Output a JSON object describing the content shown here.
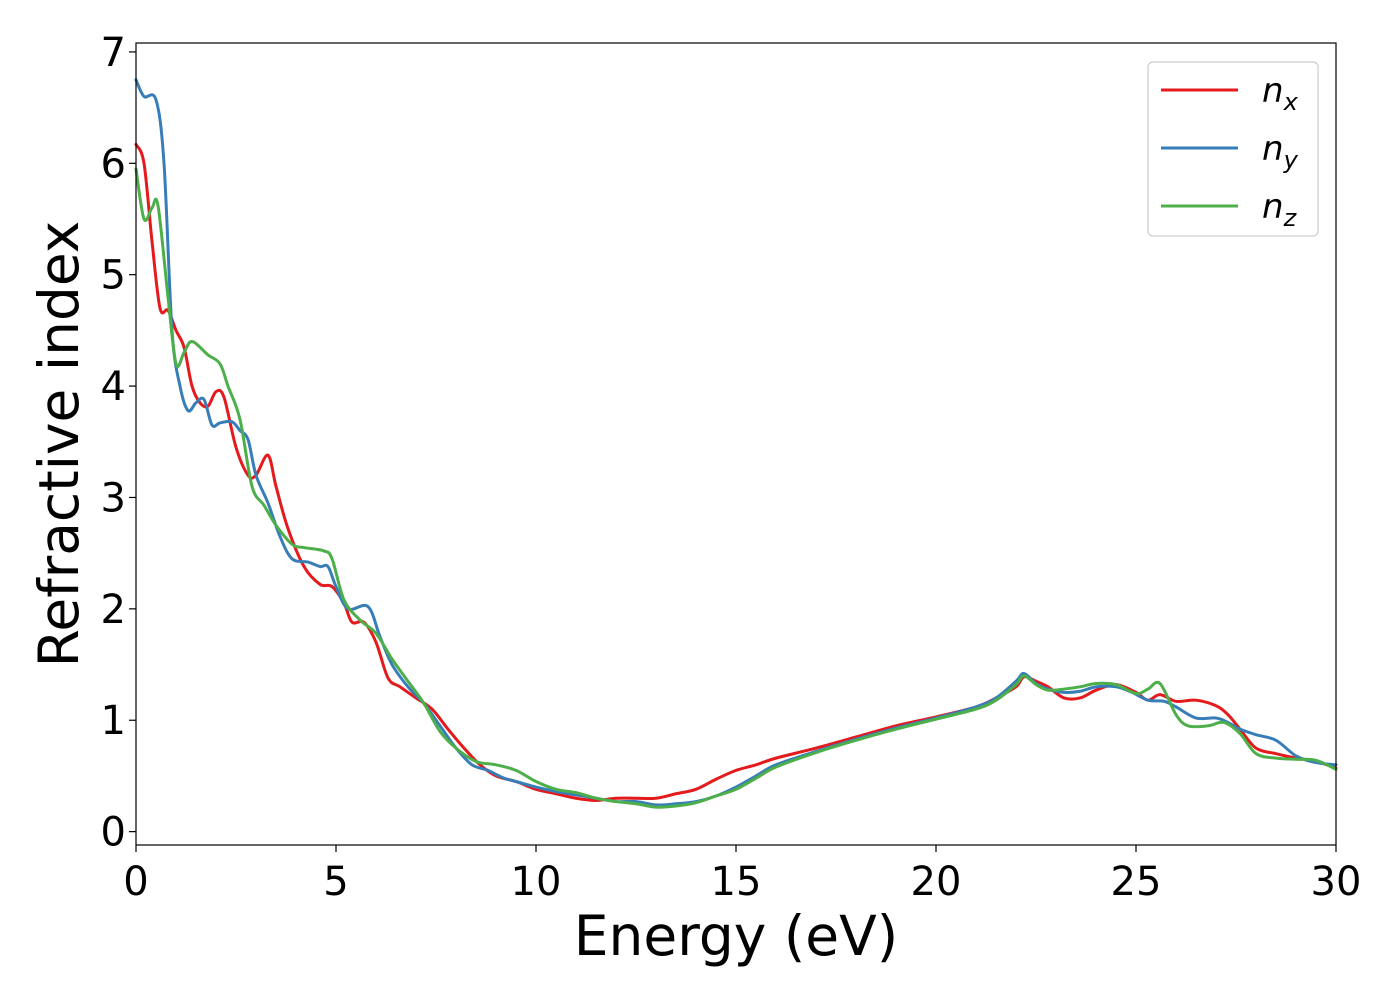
{
  "chart_data": {
    "type": "line",
    "title": "",
    "xlabel": "Energy (eV)",
    "ylabel": "Refractive index",
    "xlim": [
      0,
      30
    ],
    "ylim": [
      -0.12,
      7.08
    ],
    "xticks": [
      0,
      5,
      10,
      15,
      20,
      25,
      30
    ],
    "yticks": [
      0,
      1,
      2,
      3,
      4,
      5,
      6,
      7
    ],
    "legend_position": "top-right",
    "grid": false,
    "series": [
      {
        "name": "n_x",
        "label_main": "n",
        "label_sub": "x",
        "color": "#e41a1c",
        "points": [
          [
            0,
            6.17
          ],
          [
            0.2,
            6.0
          ],
          [
            0.4,
            5.3
          ],
          [
            0.6,
            4.7
          ],
          [
            0.8,
            4.68
          ],
          [
            1.0,
            4.5
          ],
          [
            1.2,
            4.35
          ],
          [
            1.4,
            4.0
          ],
          [
            1.6,
            3.85
          ],
          [
            1.8,
            3.82
          ],
          [
            2.0,
            3.95
          ],
          [
            2.2,
            3.9
          ],
          [
            2.5,
            3.45
          ],
          [
            2.8,
            3.2
          ],
          [
            3.0,
            3.2
          ],
          [
            3.3,
            3.38
          ],
          [
            3.5,
            3.1
          ],
          [
            3.8,
            2.72
          ],
          [
            4.2,
            2.38
          ],
          [
            4.6,
            2.22
          ],
          [
            4.9,
            2.2
          ],
          [
            5.2,
            2.05
          ],
          [
            5.4,
            1.88
          ],
          [
            5.7,
            1.88
          ],
          [
            6.0,
            1.7
          ],
          [
            6.3,
            1.38
          ],
          [
            6.6,
            1.3
          ],
          [
            7.0,
            1.2
          ],
          [
            7.4,
            1.1
          ],
          [
            7.8,
            0.92
          ],
          [
            8.2,
            0.75
          ],
          [
            8.6,
            0.6
          ],
          [
            9.0,
            0.5
          ],
          [
            9.5,
            0.45
          ],
          [
            10,
            0.38
          ],
          [
            10.5,
            0.34
          ],
          [
            11,
            0.3
          ],
          [
            11.5,
            0.28
          ],
          [
            12,
            0.3
          ],
          [
            12.5,
            0.3
          ],
          [
            13,
            0.3
          ],
          [
            13.5,
            0.34
          ],
          [
            14,
            0.38
          ],
          [
            14.5,
            0.47
          ],
          [
            15,
            0.55
          ],
          [
            15.5,
            0.6
          ],
          [
            16,
            0.66
          ],
          [
            17,
            0.75
          ],
          [
            18,
            0.85
          ],
          [
            19,
            0.95
          ],
          [
            20,
            1.03
          ],
          [
            21,
            1.12
          ],
          [
            21.5,
            1.2
          ],
          [
            22,
            1.3
          ],
          [
            22.2,
            1.39
          ],
          [
            22.5,
            1.35
          ],
          [
            22.8,
            1.3
          ],
          [
            23.2,
            1.2
          ],
          [
            23.6,
            1.2
          ],
          [
            24,
            1.27
          ],
          [
            24.5,
            1.32
          ],
          [
            25,
            1.25
          ],
          [
            25.3,
            1.18
          ],
          [
            25.6,
            1.23
          ],
          [
            26,
            1.17
          ],
          [
            26.5,
            1.18
          ],
          [
            27,
            1.13
          ],
          [
            27.3,
            1.05
          ],
          [
            27.6,
            0.92
          ],
          [
            28,
            0.75
          ],
          [
            28.5,
            0.7
          ],
          [
            29,
            0.66
          ],
          [
            29.5,
            0.63
          ],
          [
            30,
            0.57
          ]
        ]
      },
      {
        "name": "n_y",
        "label_main": "n",
        "label_sub": "y",
        "color": "#377eb8",
        "points": [
          [
            0,
            6.75
          ],
          [
            0.2,
            6.6
          ],
          [
            0.5,
            6.57
          ],
          [
            0.7,
            6.0
          ],
          [
            0.9,
            4.5
          ],
          [
            1.1,
            4.0
          ],
          [
            1.3,
            3.78
          ],
          [
            1.5,
            3.85
          ],
          [
            1.7,
            3.88
          ],
          [
            1.9,
            3.65
          ],
          [
            2.1,
            3.67
          ],
          [
            2.4,
            3.68
          ],
          [
            2.6,
            3.6
          ],
          [
            2.8,
            3.52
          ],
          [
            3.0,
            3.2
          ],
          [
            3.3,
            2.95
          ],
          [
            3.6,
            2.65
          ],
          [
            3.9,
            2.45
          ],
          [
            4.3,
            2.42
          ],
          [
            4.6,
            2.38
          ],
          [
            4.8,
            2.38
          ],
          [
            5.0,
            2.2
          ],
          [
            5.3,
            2.0
          ],
          [
            5.8,
            2.02
          ],
          [
            6.1,
            1.75
          ],
          [
            6.4,
            1.5
          ],
          [
            6.8,
            1.3
          ],
          [
            7.2,
            1.15
          ],
          [
            7.6,
            0.95
          ],
          [
            8.0,
            0.75
          ],
          [
            8.4,
            0.6
          ],
          [
            8.8,
            0.55
          ],
          [
            9.2,
            0.48
          ],
          [
            9.6,
            0.44
          ],
          [
            10,
            0.4
          ],
          [
            10.5,
            0.36
          ],
          [
            11,
            0.33
          ],
          [
            11.5,
            0.3
          ],
          [
            12,
            0.27
          ],
          [
            12.5,
            0.27
          ],
          [
            13,
            0.24
          ],
          [
            13.5,
            0.25
          ],
          [
            14,
            0.27
          ],
          [
            14.5,
            0.32
          ],
          [
            15,
            0.4
          ],
          [
            15.5,
            0.5
          ],
          [
            16,
            0.6
          ],
          [
            17,
            0.72
          ],
          [
            18,
            0.83
          ],
          [
            19,
            0.93
          ],
          [
            20,
            1.02
          ],
          [
            21,
            1.12
          ],
          [
            21.5,
            1.2
          ],
          [
            22,
            1.35
          ],
          [
            22.2,
            1.42
          ],
          [
            22.5,
            1.33
          ],
          [
            22.8,
            1.28
          ],
          [
            23.2,
            1.25
          ],
          [
            23.6,
            1.26
          ],
          [
            24,
            1.3
          ],
          [
            24.5,
            1.3
          ],
          [
            24.9,
            1.25
          ],
          [
            25.3,
            1.18
          ],
          [
            25.7,
            1.17
          ],
          [
            26,
            1.12
          ],
          [
            26.5,
            1.02
          ],
          [
            27,
            1.02
          ],
          [
            27.3,
            0.98
          ],
          [
            27.6,
            0.92
          ],
          [
            28,
            0.87
          ],
          [
            28.5,
            0.82
          ],
          [
            29,
            0.68
          ],
          [
            29.5,
            0.62
          ],
          [
            30,
            0.6
          ]
        ]
      },
      {
        "name": "n_z",
        "label_main": "n",
        "label_sub": "z",
        "color": "#4daf4a",
        "points": [
          [
            0,
            5.95
          ],
          [
            0.2,
            5.5
          ],
          [
            0.4,
            5.6
          ],
          [
            0.55,
            5.62
          ],
          [
            0.8,
            4.8
          ],
          [
            1.0,
            4.2
          ],
          [
            1.2,
            4.3
          ],
          [
            1.4,
            4.4
          ],
          [
            1.8,
            4.28
          ],
          [
            2.1,
            4.2
          ],
          [
            2.3,
            4.0
          ],
          [
            2.6,
            3.7
          ],
          [
            2.9,
            3.1
          ],
          [
            3.2,
            2.93
          ],
          [
            3.5,
            2.75
          ],
          [
            3.9,
            2.58
          ],
          [
            4.2,
            2.55
          ],
          [
            4.7,
            2.52
          ],
          [
            4.9,
            2.45
          ],
          [
            5.2,
            2.08
          ],
          [
            5.6,
            1.9
          ],
          [
            6.0,
            1.78
          ],
          [
            6.4,
            1.55
          ],
          [
            6.8,
            1.35
          ],
          [
            7.2,
            1.15
          ],
          [
            7.6,
            0.9
          ],
          [
            8.0,
            0.75
          ],
          [
            8.5,
            0.63
          ],
          [
            9.0,
            0.6
          ],
          [
            9.5,
            0.55
          ],
          [
            10,
            0.45
          ],
          [
            10.5,
            0.38
          ],
          [
            11,
            0.35
          ],
          [
            11.5,
            0.3
          ],
          [
            12,
            0.27
          ],
          [
            12.5,
            0.25
          ],
          [
            13,
            0.22
          ],
          [
            13.5,
            0.23
          ],
          [
            14,
            0.26
          ],
          [
            14.5,
            0.32
          ],
          [
            15,
            0.38
          ],
          [
            15.5,
            0.48
          ],
          [
            16,
            0.58
          ],
          [
            17,
            0.71
          ],
          [
            18,
            0.82
          ],
          [
            19,
            0.92
          ],
          [
            20,
            1.01
          ],
          [
            21,
            1.1
          ],
          [
            21.5,
            1.18
          ],
          [
            22,
            1.32
          ],
          [
            22.2,
            1.4
          ],
          [
            22.5,
            1.32
          ],
          [
            22.8,
            1.27
          ],
          [
            23.2,
            1.28
          ],
          [
            23.6,
            1.3
          ],
          [
            24,
            1.33
          ],
          [
            24.5,
            1.32
          ],
          [
            25,
            1.24
          ],
          [
            25.3,
            1.28
          ],
          [
            25.6,
            1.33
          ],
          [
            26,
            1.05
          ],
          [
            26.3,
            0.95
          ],
          [
            26.8,
            0.95
          ],
          [
            27.2,
            0.98
          ],
          [
            27.6,
            0.88
          ],
          [
            28,
            0.7
          ],
          [
            28.5,
            0.66
          ],
          [
            29,
            0.65
          ],
          [
            29.5,
            0.64
          ],
          [
            30,
            0.56
          ]
        ]
      }
    ]
  }
}
